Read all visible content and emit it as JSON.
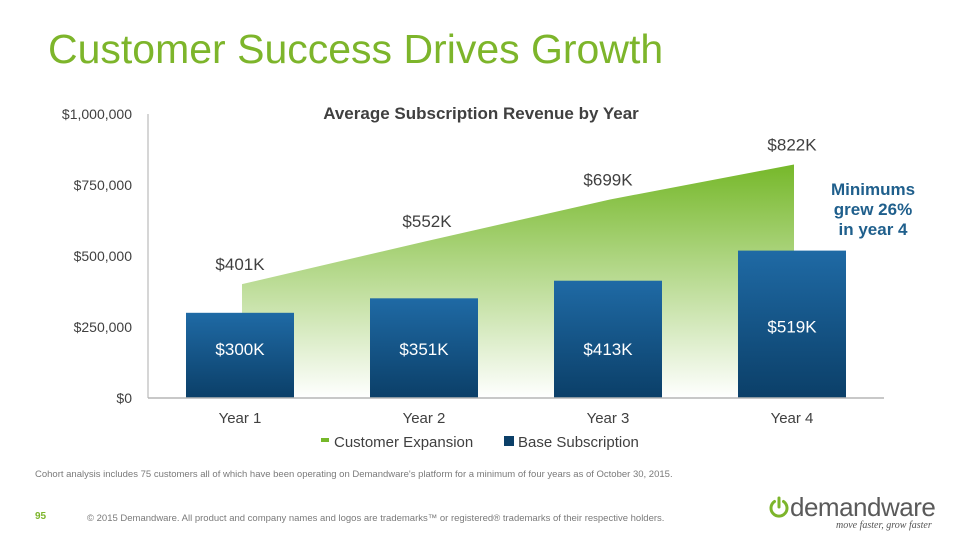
{
  "slide": {
    "title": "Customer Success Drives Growth",
    "footnote": "Cohort analysis includes 75 customers all of which have been operating on Demandware's platform for a minimum of four years as of October 30, 2015.",
    "page_number": "95",
    "copyright": "© 2015 Demandware. All product and company names and logos are trademarks™ or registered® trademarks of their respective holders.",
    "logo_text": "demandware",
    "logo_tagline": "move faster, grow faster"
  },
  "colors": {
    "title": "#7db52b",
    "bar_top": "#1f6aa5",
    "bar_bottom": "#0b3f68",
    "area_top": "#76b82a",
    "area_bottom": "#ffffff",
    "callout": "#1f5f8c",
    "text": "#404040"
  },
  "chart_data": {
    "type": "bar",
    "title": "Average Subscription Revenue by Year",
    "categories": [
      "Year 1",
      "Year 2",
      "Year 3",
      "Year 4"
    ],
    "series": [
      {
        "name": "Customer Expansion",
        "type": "area",
        "values": [
          401000,
          552000,
          699000,
          822000
        ],
        "labels": [
          "$401K",
          "$552K",
          "$699K",
          "$822K"
        ]
      },
      {
        "name": "Base Subscription",
        "type": "bar",
        "values": [
          300000,
          351000,
          413000,
          519000
        ],
        "labels": [
          "$300K",
          "$351K",
          "$413K",
          "$519K"
        ]
      }
    ],
    "ylim": [
      0,
      1000000
    ],
    "yticks": [
      0,
      250000,
      500000,
      750000,
      1000000
    ],
    "ytick_labels": [
      "$0",
      "$250,000",
      "$500,000",
      "$750,000",
      "$1,000,000"
    ],
    "legend_position": "bottom",
    "annotation": [
      "Minimums",
      "grew 26%",
      "in year 4"
    ]
  }
}
